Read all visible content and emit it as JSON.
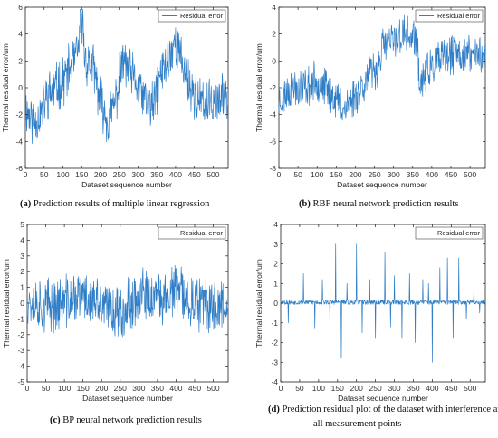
{
  "colors": {
    "series": "#2f7ec7",
    "axis": "#222222",
    "background": "#ffffff"
  },
  "chart_data": [
    {
      "type": "line",
      "panel": "a",
      "caption_tag": "(a)",
      "caption_lines": [
        "Prediction results of multiple linear regression"
      ],
      "xlabel": "Dataset sequence number",
      "ylabel": "Thermal residual error/um",
      "xlim": [
        0,
        540
      ],
      "ylim": [
        -6,
        6
      ],
      "xticks": [
        0,
        50,
        100,
        150,
        200,
        250,
        300,
        350,
        400,
        450,
        500
      ],
      "yticks": [
        -6,
        -4,
        -2,
        0,
        2,
        4,
        6
      ],
      "grid": false,
      "legend_position": "top-right",
      "series": [
        {
          "name": "Residual error",
          "x": [
            0,
            20,
            40,
            60,
            80,
            100,
            120,
            140,
            150,
            160,
            180,
            200,
            220,
            240,
            250,
            260,
            280,
            300,
            320,
            340,
            360,
            380,
            400,
            420,
            440,
            460,
            480,
            500,
            520,
            540
          ],
          "y": [
            -1.5,
            -2.5,
            -2.0,
            -0.5,
            0.0,
            0.5,
            1.5,
            2.5,
            5.5,
            2.0,
            1.5,
            -1.0,
            -2.5,
            -1.0,
            0.5,
            2.0,
            1.0,
            0.0,
            -1.0,
            -1.5,
            1.0,
            2.0,
            3.5,
            1.5,
            0.0,
            -1.0,
            -1.5,
            -1.0,
            -1.0,
            -0.5
          ],
          "noise": 1.6,
          "seed": 11
        }
      ]
    },
    {
      "type": "line",
      "panel": "b",
      "caption_tag": "(b)",
      "caption_lines": [
        "RBF neural network prediction results"
      ],
      "xlabel": "Dataset sequence number",
      "ylabel": "Thermal residual error/um",
      "xlim": [
        0,
        540
      ],
      "ylim": [
        -8,
        4
      ],
      "xticks": [
        0,
        50,
        100,
        150,
        200,
        250,
        300,
        350,
        400,
        450,
        500
      ],
      "yticks": [
        -8,
        -6,
        -4,
        -2,
        0,
        2,
        4
      ],
      "grid": false,
      "legend_position": "top-right",
      "series": [
        {
          "name": "Residual error",
          "x": [
            0,
            30,
            60,
            100,
            140,
            170,
            200,
            240,
            260,
            270,
            300,
            330,
            360,
            370,
            380,
            420,
            460,
            500,
            540
          ],
          "y": [
            -3.0,
            -2.0,
            -2.0,
            -1.5,
            -2.5,
            -3.5,
            -2.5,
            -1.0,
            -0.5,
            1.0,
            1.5,
            2.0,
            1.5,
            -2.0,
            -1.0,
            0.0,
            0.5,
            0.5,
            0.5
          ],
          "noise": 1.3,
          "seed": 23
        }
      ]
    },
    {
      "type": "line",
      "panel": "c",
      "caption_tag": "(c)",
      "caption_lines": [
        "BP neural network prediction results"
      ],
      "xlabel": "Dataset sequence number",
      "ylabel": "Thermal residual error/um",
      "xlim": [
        0,
        540
      ],
      "ylim": [
        -5,
        5
      ],
      "xticks": [
        0,
        50,
        100,
        150,
        200,
        250,
        300,
        350,
        400,
        450,
        500
      ],
      "yticks": [
        -5,
        -4,
        -3,
        -2,
        -1,
        0,
        1,
        2,
        3,
        4,
        5
      ],
      "grid": false,
      "legend_position": "top-right",
      "series": [
        {
          "name": "Residual error",
          "x": [
            0,
            50,
            100,
            150,
            200,
            250,
            300,
            350,
            400,
            450,
            500,
            540
          ],
          "y": [
            0.3,
            -0.2,
            0.0,
            0.5,
            -0.3,
            -0.5,
            0.5,
            0.2,
            0.8,
            0.0,
            -0.3,
            0.2
          ],
          "noise": 1.5,
          "seed": 37
        }
      ]
    },
    {
      "type": "line",
      "panel": "d",
      "caption_tag": "(d)",
      "caption_lines": [
        "Prediction residual plot of the dataset with interference at",
        "all measurement points"
      ],
      "xlabel": "Dataset sequence number",
      "ylabel": "Thermal residual error/um",
      "xlim": [
        0,
        540
      ],
      "ylim": [
        -4,
        4
      ],
      "xticks": [
        0,
        50,
        100,
        150,
        200,
        250,
        300,
        350,
        400,
        450,
        500
      ],
      "yticks": [
        -4,
        -3,
        -2,
        -1,
        0,
        1,
        2,
        3,
        4
      ],
      "grid": false,
      "legend_position": "top-right",
      "series": [
        {
          "name": "Residual error",
          "baseline": 0.05,
          "noise": 0.12,
          "seed": 53,
          "spike_x": [
            20,
            60,
            90,
            110,
            130,
            145,
            160,
            175,
            200,
            215,
            235,
            250,
            275,
            290,
            300,
            320,
            340,
            355,
            375,
            390,
            400,
            420,
            440,
            455,
            470,
            490,
            510,
            525
          ],
          "spike_y": [
            -1.0,
            1.5,
            -1.3,
            1.2,
            -1.0,
            3.0,
            -2.8,
            1.0,
            3.0,
            -1.5,
            1.2,
            -1.8,
            2.6,
            -1.2,
            1.4,
            -1.8,
            1.5,
            -2.0,
            1.2,
            1.0,
            -3.0,
            1.8,
            2.3,
            -1.8,
            2.3,
            -0.8,
            0.8,
            -0.5
          ]
        }
      ]
    }
  ]
}
